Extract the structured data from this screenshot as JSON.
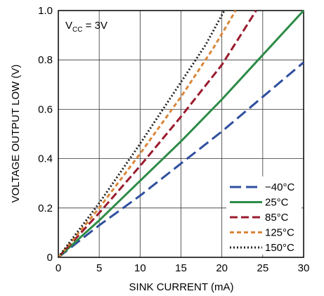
{
  "chart_data": {
    "type": "line",
    "title": "",
    "xlabel": "SINK CURRENT (mA)",
    "ylabel": "VOLTAGE OUTPUT LOW (V)",
    "xlim": [
      0,
      30
    ],
    "ylim": [
      0,
      1.0
    ],
    "x_ticks": [
      "0",
      "5",
      "10",
      "15",
      "20",
      "25",
      "30"
    ],
    "y_ticks": [
      "0",
      "0.2",
      "0.4",
      "0.6",
      "0.8",
      "1.0"
    ],
    "grid": true,
    "legend_position": "bottom-right",
    "annotation": {
      "prefix": "V",
      "subscript": "CC",
      "suffix": " = 3V"
    },
    "series": [
      {
        "name": "−40°C",
        "color": "#2e4f9e",
        "dash": "long-dash",
        "x": [
          0,
          5,
          10,
          15,
          20,
          25,
          30
        ],
        "y": [
          0,
          0.13,
          0.25,
          0.38,
          0.51,
          0.65,
          0.79
        ]
      },
      {
        "name": "25°C",
        "color": "#2e8b47",
        "dash": "solid",
        "x": [
          0,
          5,
          10,
          15,
          20,
          25,
          30
        ],
        "y": [
          0,
          0.15,
          0.31,
          0.47,
          0.64,
          0.82,
          1.0
        ]
      },
      {
        "name": "85°C",
        "color": "#9a1b2e",
        "dash": "dash",
        "x": [
          0,
          5,
          10,
          15,
          20,
          24.2
        ],
        "y": [
          0,
          0.18,
          0.37,
          0.57,
          0.78,
          1.0
        ]
      },
      {
        "name": "125°C",
        "color": "#d9863a",
        "dash": "short-dash",
        "x": [
          0,
          5,
          10,
          15,
          19,
          21.7
        ],
        "y": [
          0,
          0.2,
          0.42,
          0.65,
          0.85,
          1.0
        ]
      },
      {
        "name": "150°C",
        "color": "#222222",
        "dash": "dot",
        "x": [
          0,
          5,
          10,
          15,
          18,
          20.3
        ],
        "y": [
          0,
          0.22,
          0.46,
          0.71,
          0.86,
          1.0
        ]
      }
    ]
  }
}
